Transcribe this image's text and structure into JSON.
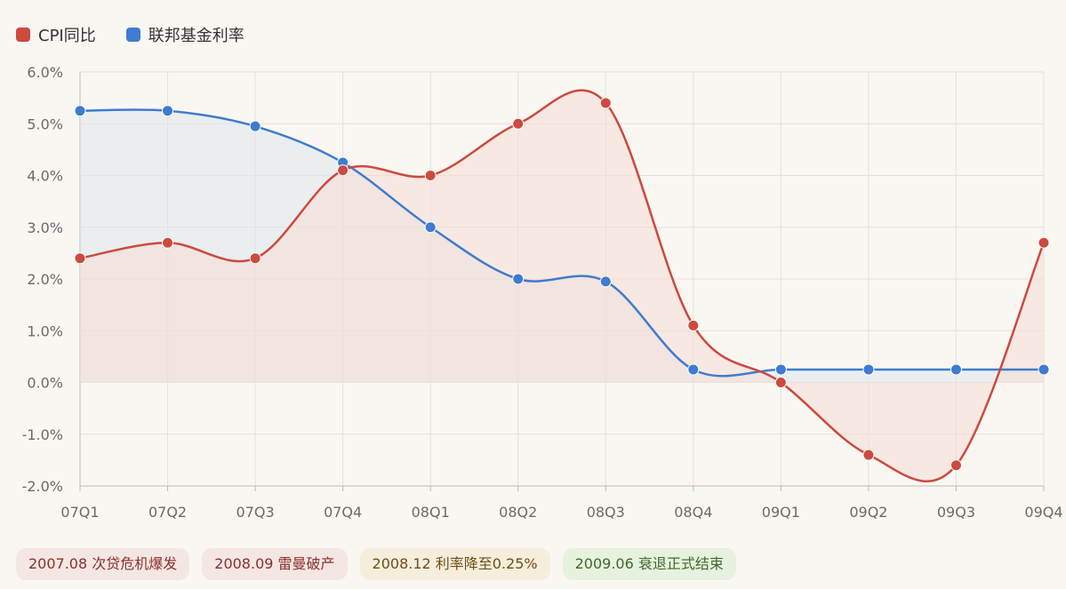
{
  "legend": [
    {
      "label": "CPI同比",
      "color": "#cc4a3f"
    },
    {
      "label": "联邦基金利率",
      "color": "#3f7bd0"
    }
  ],
  "events": [
    {
      "label": "2007.08 次贷危机爆发",
      "style": "red"
    },
    {
      "label": "2008.09 雷曼破产",
      "style": "red"
    },
    {
      "label": "2008.12 利率降至0.25%",
      "style": "amber"
    },
    {
      "label": "2009.06 衰退正式结束",
      "style": "green"
    }
  ],
  "chart_data": {
    "type": "area",
    "categories": [
      "07Q1",
      "07Q2",
      "07Q3",
      "07Q4",
      "08Q1",
      "08Q2",
      "08Q3",
      "08Q4",
      "09Q1",
      "09Q2",
      "09Q3",
      "09Q4"
    ],
    "series": [
      {
        "name": "CPI同比",
        "color": "#cc4a3f",
        "fill": "#f5dcd5",
        "values": [
          2.4,
          2.7,
          2.4,
          4.1,
          4.0,
          5.0,
          5.4,
          1.1,
          0.0,
          -1.4,
          -1.6,
          2.7
        ]
      },
      {
        "name": "联邦基金利率",
        "color": "#3f7bd0",
        "fill": "#dde7ef",
        "values": [
          5.25,
          5.25,
          4.95,
          4.25,
          3.0,
          2.0,
          1.95,
          0.25,
          0.25,
          0.25,
          0.25,
          0.25
        ]
      }
    ],
    "ylim": [
      -2,
      6
    ],
    "yticks": [
      "6.0%",
      "5.0%",
      "4.0%",
      "3.0%",
      "2.0%",
      "1.0%",
      "0.0%",
      "-1.0%",
      "-2.0%"
    ],
    "grid": true,
    "legend_position": "top-left"
  }
}
